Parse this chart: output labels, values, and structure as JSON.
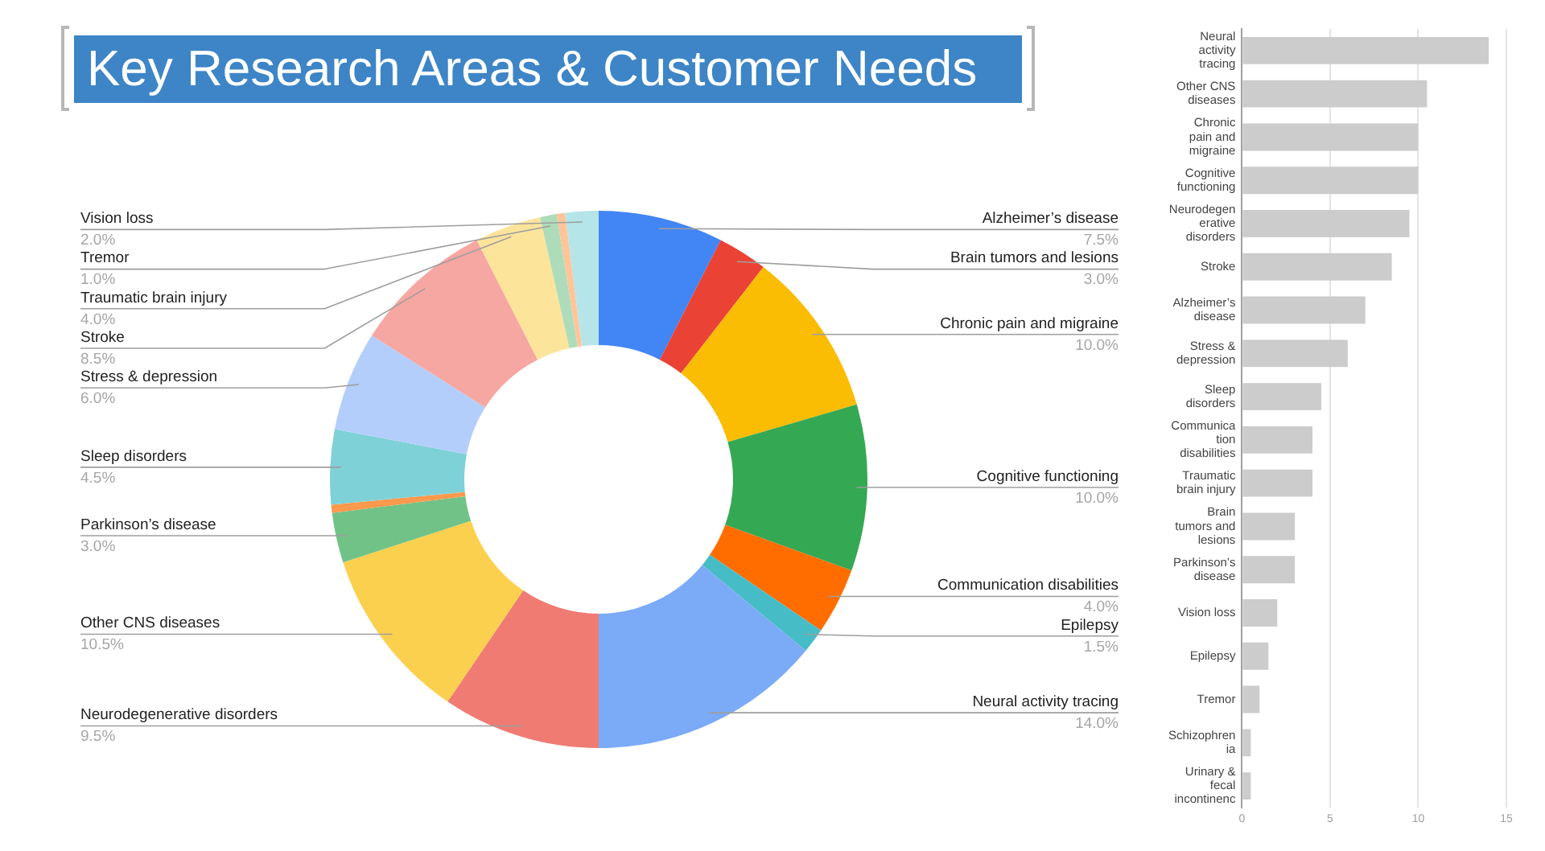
{
  "chart_data": [
    {
      "type": "donut",
      "title": "Key Research Areas & Customer Needs",
      "categories": [
        "Alzheimer’s disease",
        "Brain tumors and lesions",
        "Chronic pain and migraine",
        "Cognitive functioning",
        "Communication disabilities",
        "Epilepsy",
        "Neural activity tracing",
        "Neurodegenerative disorders",
        "Other CNS diseases",
        "Parkinson’s disease",
        null,
        "Sleep disorders",
        "Stress & depression",
        "Stroke",
        "Traumatic brain injury",
        "Tremor",
        null,
        "Vision loss"
      ],
      "values": [
        7.5,
        3,
        10,
        10,
        4,
        1.5,
        14,
        9.5,
        10.5,
        3,
        0.5,
        4.5,
        6,
        8.5,
        4,
        1,
        0.5,
        2
      ],
      "value_labels": [
        "7.5%",
        "3.0%",
        "10.0%",
        "10.0%",
        "4.0%",
        "1.5%",
        "14.0%",
        "9.5%",
        "10.5%",
        "3.0%",
        null,
        "4.5%",
        "6.0%",
        "8.5%",
        "4.0%",
        "1.0%",
        null,
        "2.0%"
      ],
      "colors": [
        "#4285f4",
        "#ea4335",
        "#fbbc04",
        "#34a853",
        "#ff6d01",
        "#46bdc6",
        "#7baaf7",
        "#f07b72",
        "#fcd04f",
        "#71c287",
        "#ff994d",
        "#7ed1d7",
        "#b3cefb",
        "#f7a7a1",
        "#fde49b",
        "#aedcba",
        "#ffc599",
        "#b5e5e8"
      ]
    },
    {
      "type": "bar",
      "orientation": "horizontal",
      "categories": [
        "Neural activity tracing",
        "Other CNS diseases",
        "Chronic pain and migraine",
        "Cognitive functioning",
        "Neurodegenerative disorders",
        "Stroke",
        "Alzheimer’s disease",
        "Stress & depression",
        "Sleep disorders",
        "Communication disabilities",
        "Traumatic brain injury",
        "Brain tumors and lesions",
        "Parkinson’s disease",
        "Vision loss",
        "Epilepsy",
        "Tremor",
        "Schizophrenia",
        "Urinary & fecal incontinenc"
      ],
      "values": [
        14,
        10.5,
        10,
        10,
        9.5,
        8.5,
        7,
        6,
        4.5,
        4,
        4,
        3,
        3,
        2,
        1.5,
        1,
        0.5,
        0.5
      ],
      "color": "#cccccc",
      "xlim": [
        0,
        15
      ],
      "xticks": [
        0,
        5,
        10,
        15
      ],
      "grid": "x"
    }
  ]
}
